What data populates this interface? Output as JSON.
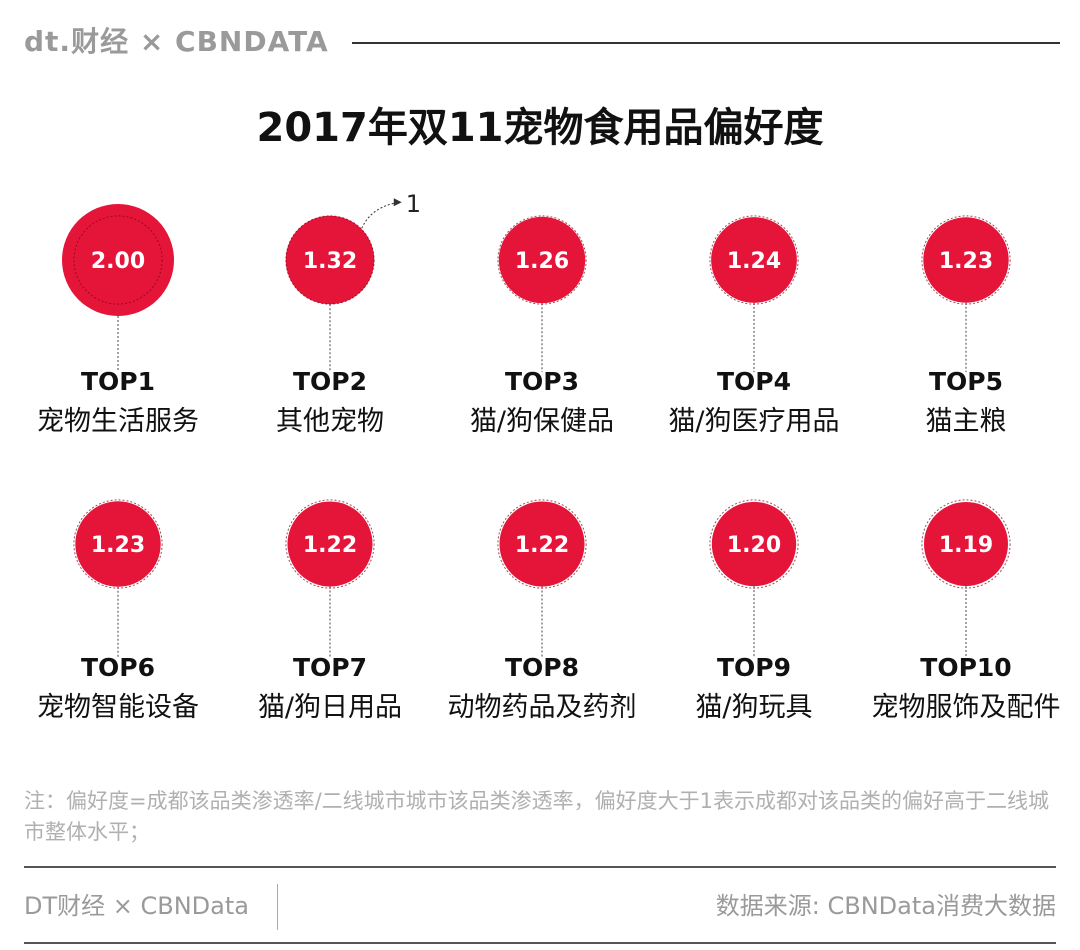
{
  "header": {
    "logo_text": "dt.财经 × CBNDATA"
  },
  "chart_data": {
    "type": "bubble-ranking",
    "title": "2017年双11宠物食用品偏好度",
    "items": [
      {
        "rank_label": "TOP1",
        "category": "宠物生活服务",
        "value": 2.0
      },
      {
        "rank_label": "TOP2",
        "category": "其他宠物",
        "value": 1.32
      },
      {
        "rank_label": "TOP3",
        "category": "猫/狗保健品",
        "value": 1.26
      },
      {
        "rank_label": "TOP4",
        "category": "猫/狗医疗用品",
        "value": 1.24
      },
      {
        "rank_label": "TOP5",
        "category": "猫主粮",
        "value": 1.23
      },
      {
        "rank_label": "TOP6",
        "category": "宠物智能设备",
        "value": 1.23
      },
      {
        "rank_label": "TOP7",
        "category": "猫/狗日用品",
        "value": 1.22
      },
      {
        "rank_label": "TOP8",
        "category": "动物药品及药剂",
        "value": 1.22
      },
      {
        "rank_label": "TOP9",
        "category": "猫/狗玩具",
        "value": 1.2
      },
      {
        "rank_label": "TOP10",
        "category": "宠物服饰及配件",
        "value": 1.19
      }
    ],
    "reference": {
      "value": 1,
      "label": "1"
    }
  },
  "note": "注：偏好度=成都该品类渗透率/二线城市城市该品类渗透率，偏好度大于1表示成都对该品类的偏好高于二线城市整体水平；",
  "footer": {
    "left": "DT财经 × CBNData",
    "right": "数据来源: CBNData消费大数据"
  },
  "colors": {
    "bubble": "#e5153a",
    "text": "#111111",
    "muted": "#9a9a9a"
  }
}
